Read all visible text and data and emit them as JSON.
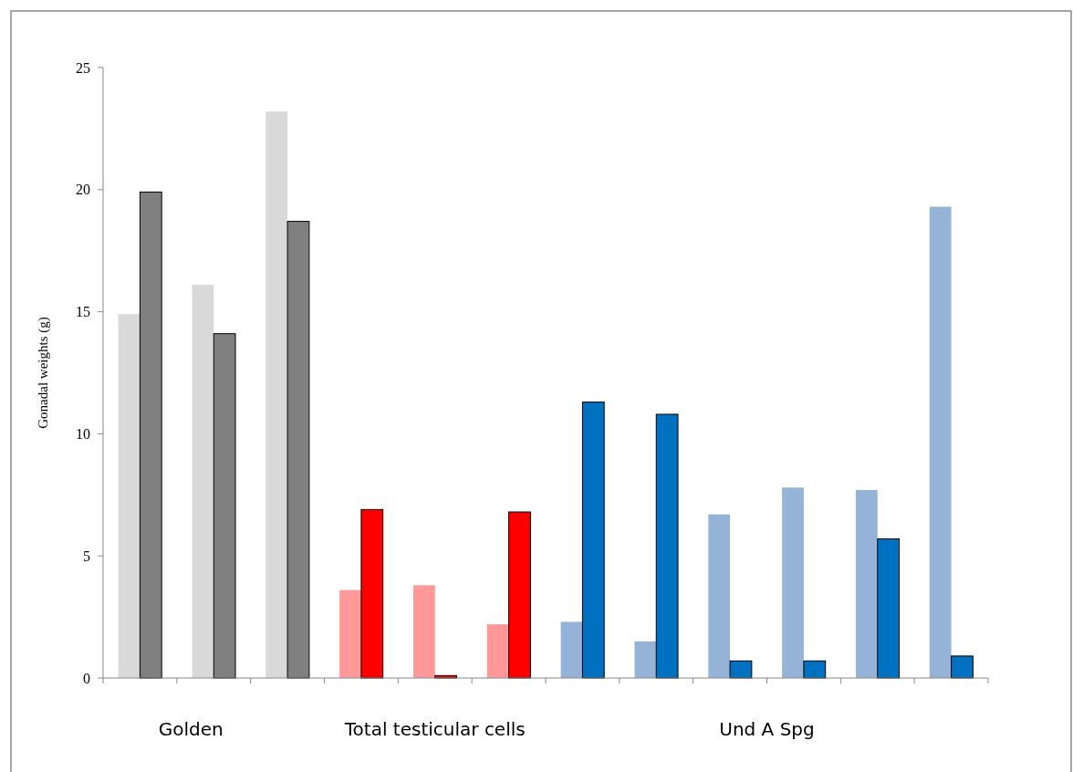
{
  "chart_data": {
    "type": "bar",
    "ylabel": "Gonadal weights (g)",
    "categories": [
      null,
      null,
      null,
      null,
      null,
      null,
      null,
      null,
      null,
      null,
      null,
      null
    ],
    "series": [
      {
        "colors": [
          "#d9d9d9",
          "#d9d9d9",
          "#d9d9d9",
          "#ff9999",
          "#ff9999",
          "#ff9999",
          "#95b3d7",
          "#95b3d7",
          "#95b3d7",
          "#95b3d7",
          "#95b3d7",
          "#95b3d7"
        ],
        "values": [
          14.9,
          16.1,
          23.2,
          3.6,
          3.8,
          2.2,
          2.3,
          1.5,
          6.7,
          7.8,
          7.7,
          19.3
        ]
      },
      {
        "colors": [
          "#808080",
          "#808080",
          "#808080",
          "#ff0000",
          "#ff0000",
          "#ff0000",
          "#0070c0",
          "#0070c0",
          "#0070c0",
          "#0070c0",
          "#0070c0",
          "#0070c0"
        ],
        "values": [
          19.9,
          14.1,
          18.7,
          6.9,
          0.1,
          6.8,
          11.3,
          10.8,
          0.7,
          0.7,
          5.7,
          0.9
        ]
      }
    ],
    "ylim": [
      0,
      25
    ],
    "yticks": [
      0,
      5,
      10,
      15,
      20,
      25
    ],
    "grid": false,
    "annotations": [
      "Golden",
      "Total testicular cells",
      "Und A Spg"
    ]
  }
}
